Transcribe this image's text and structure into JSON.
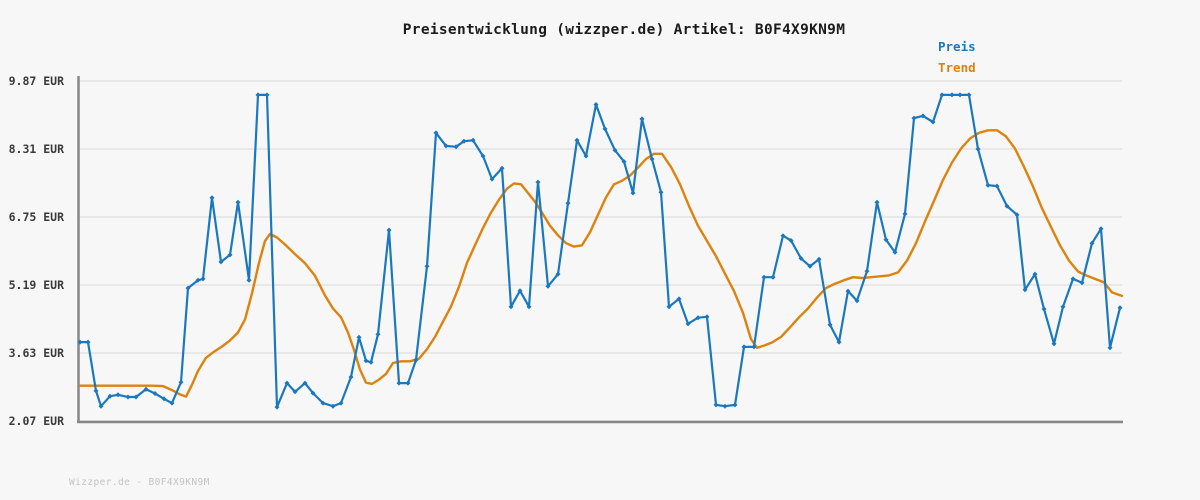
{
  "page": {
    "background": "#f7f7f7"
  },
  "chart": {
    "title": "Preisentwicklung (wizzper.de) Artikel: B0F4X9KN9M",
    "watermark": "Wizzper.de - B0F4X9KN9M",
    "legend": [
      {
        "label": "Preis",
        "color": "#1b78be"
      },
      {
        "label": "Trend",
        "color": "#de820e"
      }
    ],
    "y_axis": {
      "ticks": [
        {
          "value": 9.87,
          "label": "9.87 EUR"
        },
        {
          "value": 8.31,
          "label": "8.31 EUR"
        },
        {
          "value": 6.75,
          "label": "6.75 EUR"
        },
        {
          "value": 5.19,
          "label": "5.19 EUR"
        },
        {
          "value": 3.63,
          "label": "3.63 EUR"
        },
        {
          "value": 2.07,
          "label": "2.07 EUR"
        }
      ]
    },
    "colors": {
      "grid": "#e3e3e3",
      "axis": "#878787",
      "title_text": "#1c1c1c",
      "tick_text": "#3a3a3a",
      "watermark_text": "#c4c4c4"
    }
  },
  "chart_data": {
    "type": "line",
    "title": "Preisentwicklung (wizzper.de) Artikel: B0F4X9KN9M",
    "xlabel": "",
    "ylabel": "EUR",
    "ylim": [
      2.07,
      9.87
    ],
    "x_unit": "time, no x tick labels shown (x = horizontal plot position)",
    "grid": true,
    "legend_position": "top-right",
    "series": [
      {
        "name": "Preis",
        "color": "#1b78be",
        "marker": "diamond",
        "width": 2.2,
        "points": [
          [
            80,
            3.88
          ],
          [
            88,
            3.88
          ],
          [
            96,
            2.76
          ],
          [
            101,
            2.41
          ],
          [
            110,
            2.64
          ],
          [
            118,
            2.67
          ],
          [
            128,
            2.62
          ],
          [
            136,
            2.62
          ],
          [
            146,
            2.8
          ],
          [
            155,
            2.7
          ],
          [
            164,
            2.58
          ],
          [
            172,
            2.48
          ],
          [
            181,
            2.96
          ],
          [
            188,
            5.12
          ],
          [
            198,
            5.3
          ],
          [
            203,
            5.33
          ],
          [
            212,
            7.19
          ],
          [
            221,
            5.72
          ],
          [
            230,
            5.88
          ],
          [
            238,
            7.09
          ],
          [
            249,
            5.3
          ],
          [
            258,
            9.55
          ],
          [
            267,
            9.55
          ],
          [
            277,
            2.39
          ],
          [
            287,
            2.94
          ],
          [
            295,
            2.74
          ],
          [
            305,
            2.94
          ],
          [
            313,
            2.71
          ],
          [
            323,
            2.48
          ],
          [
            333,
            2.41
          ],
          [
            341,
            2.48
          ],
          [
            351,
            3.08
          ],
          [
            359,
            3.99
          ],
          [
            366,
            3.45
          ],
          [
            371,
            3.42
          ],
          [
            378,
            4.06
          ],
          [
            389,
            6.45
          ],
          [
            399,
            2.94
          ],
          [
            408,
            2.94
          ],
          [
            416,
            3.47
          ],
          [
            427,
            5.62
          ],
          [
            436,
            8.68
          ],
          [
            446,
            8.38
          ],
          [
            456,
            8.36
          ],
          [
            464,
            8.49
          ],
          [
            473,
            8.51
          ],
          [
            483,
            8.15
          ],
          [
            492,
            7.62
          ],
          [
            502,
            7.87
          ],
          [
            511,
            4.69
          ],
          [
            520,
            5.06
          ],
          [
            529,
            4.69
          ],
          [
            538,
            7.55
          ],
          [
            548,
            5.16
          ],
          [
            558,
            5.44
          ],
          [
            568,
            7.07
          ],
          [
            577,
            8.51
          ],
          [
            586,
            8.15
          ],
          [
            596,
            9.33
          ],
          [
            605,
            8.77
          ],
          [
            615,
            8.28
          ],
          [
            624,
            8.02
          ],
          [
            633,
            7.3
          ],
          [
            642,
            9.0
          ],
          [
            652,
            8.08
          ],
          [
            661,
            7.32
          ],
          [
            669,
            4.69
          ],
          [
            679,
            4.87
          ],
          [
            688,
            4.3
          ],
          [
            698,
            4.44
          ],
          [
            707,
            4.46
          ],
          [
            716,
            2.44
          ],
          [
            725,
            2.41
          ],
          [
            735,
            2.44
          ],
          [
            744,
            3.77
          ],
          [
            754,
            3.77
          ],
          [
            764,
            5.37
          ],
          [
            773,
            5.37
          ],
          [
            783,
            6.32
          ],
          [
            791,
            6.21
          ],
          [
            801,
            5.8
          ],
          [
            810,
            5.62
          ],
          [
            819,
            5.78
          ],
          [
            830,
            4.28
          ],
          [
            839,
            3.88
          ],
          [
            848,
            5.05
          ],
          [
            857,
            4.83
          ],
          [
            867,
            5.51
          ],
          [
            877,
            7.09
          ],
          [
            886,
            6.23
          ],
          [
            895,
            5.94
          ],
          [
            905,
            6.82
          ],
          [
            914,
            9.02
          ],
          [
            923,
            9.07
          ],
          [
            933,
            8.93
          ],
          [
            942,
            9.55
          ],
          [
            952,
            9.55
          ],
          [
            960,
            9.55
          ],
          [
            969,
            9.55
          ],
          [
            978,
            8.31
          ],
          [
            988,
            7.48
          ],
          [
            997,
            7.46
          ],
          [
            1007,
            7.0
          ],
          [
            1017,
            6.8
          ],
          [
            1025,
            5.08
          ],
          [
            1035,
            5.44
          ],
          [
            1044,
            4.64
          ],
          [
            1054,
            3.84
          ],
          [
            1063,
            4.69
          ],
          [
            1073,
            5.33
          ],
          [
            1082,
            5.24
          ],
          [
            1092,
            6.15
          ],
          [
            1101,
            6.48
          ],
          [
            1110,
            3.75
          ],
          [
            1120,
            4.67
          ]
        ]
      },
      {
        "name": "Trend",
        "color": "#de820e",
        "marker": "none",
        "width": 2.4,
        "points": [
          [
            80,
            2.88
          ],
          [
            95,
            2.88
          ],
          [
            110,
            2.88
          ],
          [
            125,
            2.88
          ],
          [
            140,
            2.88
          ],
          [
            152,
            2.88
          ],
          [
            163,
            2.87
          ],
          [
            172,
            2.78
          ],
          [
            180,
            2.68
          ],
          [
            186,
            2.63
          ],
          [
            192,
            2.9
          ],
          [
            198,
            3.22
          ],
          [
            206,
            3.52
          ],
          [
            214,
            3.66
          ],
          [
            222,
            3.78
          ],
          [
            230,
            3.92
          ],
          [
            238,
            4.1
          ],
          [
            245,
            4.4
          ],
          [
            252,
            5.0
          ],
          [
            259,
            5.7
          ],
          [
            265,
            6.2
          ],
          [
            270,
            6.36
          ],
          [
            277,
            6.28
          ],
          [
            285,
            6.12
          ],
          [
            295,
            5.9
          ],
          [
            305,
            5.69
          ],
          [
            315,
            5.4
          ],
          [
            325,
            4.95
          ],
          [
            333,
            4.65
          ],
          [
            341,
            4.45
          ],
          [
            348,
            4.1
          ],
          [
            354,
            3.7
          ],
          [
            360,
            3.25
          ],
          [
            366,
            2.95
          ],
          [
            372,
            2.92
          ],
          [
            379,
            3.02
          ],
          [
            386,
            3.15
          ],
          [
            393,
            3.4
          ],
          [
            401,
            3.44
          ],
          [
            410,
            3.44
          ],
          [
            419,
            3.5
          ],
          [
            427,
            3.72
          ],
          [
            435,
            4.0
          ],
          [
            443,
            4.35
          ],
          [
            451,
            4.7
          ],
          [
            459,
            5.15
          ],
          [
            467,
            5.7
          ],
          [
            475,
            6.1
          ],
          [
            483,
            6.5
          ],
          [
            491,
            6.85
          ],
          [
            499,
            7.15
          ],
          [
            507,
            7.4
          ],
          [
            514,
            7.52
          ],
          [
            521,
            7.5
          ],
          [
            528,
            7.3
          ],
          [
            535,
            7.1
          ],
          [
            542,
            6.85
          ],
          [
            550,
            6.55
          ],
          [
            558,
            6.33
          ],
          [
            566,
            6.15
          ],
          [
            574,
            6.07
          ],
          [
            582,
            6.1
          ],
          [
            590,
            6.4
          ],
          [
            598,
            6.8
          ],
          [
            606,
            7.2
          ],
          [
            614,
            7.5
          ],
          [
            622,
            7.58
          ],
          [
            630,
            7.7
          ],
          [
            638,
            7.88
          ],
          [
            646,
            8.08
          ],
          [
            654,
            8.2
          ],
          [
            662,
            8.2
          ],
          [
            671,
            7.9
          ],
          [
            680,
            7.5
          ],
          [
            689,
            7.0
          ],
          [
            698,
            6.55
          ],
          [
            707,
            6.2
          ],
          [
            716,
            5.85
          ],
          [
            725,
            5.45
          ],
          [
            734,
            5.05
          ],
          [
            743,
            4.55
          ],
          [
            751,
            3.95
          ],
          [
            757,
            3.75
          ],
          [
            764,
            3.8
          ],
          [
            772,
            3.87
          ],
          [
            781,
            4.0
          ],
          [
            790,
            4.22
          ],
          [
            799,
            4.45
          ],
          [
            808,
            4.65
          ],
          [
            817,
            4.9
          ],
          [
            826,
            5.12
          ],
          [
            835,
            5.22
          ],
          [
            844,
            5.3
          ],
          [
            853,
            5.37
          ],
          [
            862,
            5.35
          ],
          [
            871,
            5.37
          ],
          [
            880,
            5.39
          ],
          [
            889,
            5.41
          ],
          [
            898,
            5.48
          ],
          [
            907,
            5.75
          ],
          [
            916,
            6.15
          ],
          [
            925,
            6.65
          ],
          [
            934,
            7.12
          ],
          [
            943,
            7.6
          ],
          [
            952,
            8.0
          ],
          [
            961,
            8.32
          ],
          [
            970,
            8.55
          ],
          [
            979,
            8.68
          ],
          [
            988,
            8.74
          ],
          [
            997,
            8.74
          ],
          [
            1006,
            8.6
          ],
          [
            1015,
            8.32
          ],
          [
            1024,
            7.9
          ],
          [
            1033,
            7.45
          ],
          [
            1042,
            6.95
          ],
          [
            1051,
            6.52
          ],
          [
            1060,
            6.1
          ],
          [
            1069,
            5.75
          ],
          [
            1078,
            5.5
          ],
          [
            1087,
            5.4
          ],
          [
            1096,
            5.32
          ],
          [
            1104,
            5.25
          ],
          [
            1112,
            5.02
          ],
          [
            1122,
            4.94
          ]
        ]
      }
    ]
  }
}
